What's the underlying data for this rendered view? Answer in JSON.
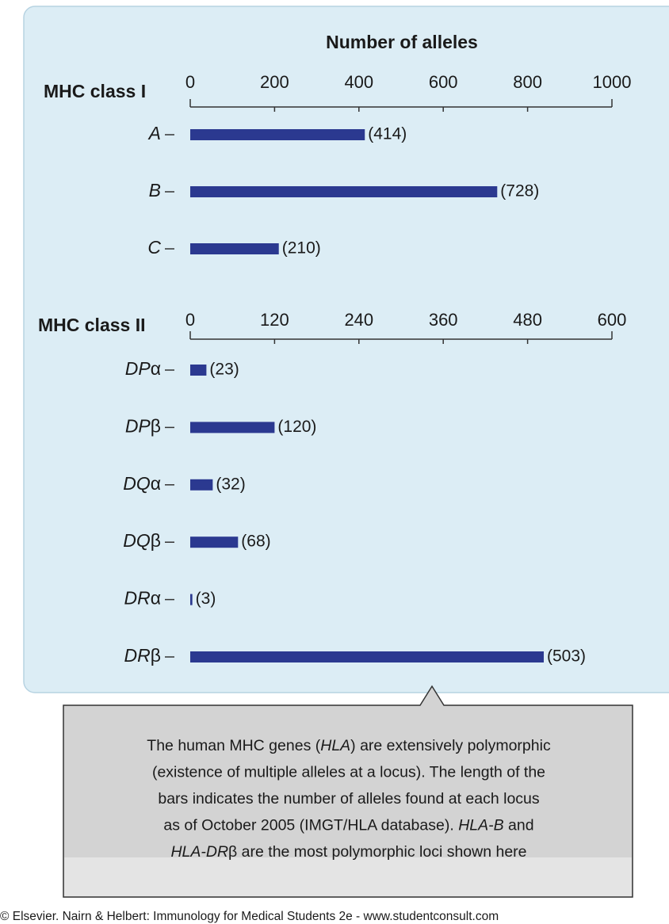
{
  "title": "Number of alleles",
  "chart_data": [
    {
      "type": "bar",
      "label": "MHC class I",
      "color": "#2b3990",
      "categories": [
        "A",
        "B",
        "C"
      ],
      "values": [
        414,
        728,
        210
      ],
      "value_labels": [
        "(414)",
        "(728)",
        "(210)"
      ],
      "xlim": [
        0,
        1000
      ],
      "xticks": [
        0,
        200,
        400,
        600,
        800,
        1000
      ]
    },
    {
      "type": "bar",
      "label": "MHC class II",
      "color": "#2b3990",
      "categories": [
        "DPα",
        "DPβ",
        "DQα",
        "DQβ",
        "DRα",
        "DRβ"
      ],
      "values": [
        23,
        120,
        32,
        68,
        3,
        503
      ],
      "value_labels": [
        "(23)",
        "(120)",
        "(32)",
        "(68)",
        "(3)",
        "(503)"
      ],
      "xlim": [
        0,
        600
      ],
      "xticks": [
        0,
        120,
        240,
        360,
        480,
        600
      ]
    }
  ],
  "caption": {
    "lines": [
      [
        {
          "text": "The human MHC genes ("
        },
        {
          "text": "HLA",
          "italic": true
        },
        {
          "text": ") are extensively polymorphic"
        }
      ],
      [
        {
          "text": "(existence of multiple alleles at a locus). The length of the"
        }
      ],
      [
        {
          "text": "bars indicates the number of alleles found at each locus"
        }
      ],
      [
        {
          "text": "as of October 2005 (IMGT/HLA database). "
        },
        {
          "text": "HLA-B",
          "italic": true
        },
        {
          "text": " and"
        }
      ],
      [
        {
          "text": "HLA-DR",
          "italic": true
        },
        {
          "text": "β are the most polymorphic loci shown here"
        }
      ]
    ]
  },
  "copyright": "© Elsevier. Nairn & Helbert: Immunology for Medical Students 2e - www.studentconsult.com"
}
